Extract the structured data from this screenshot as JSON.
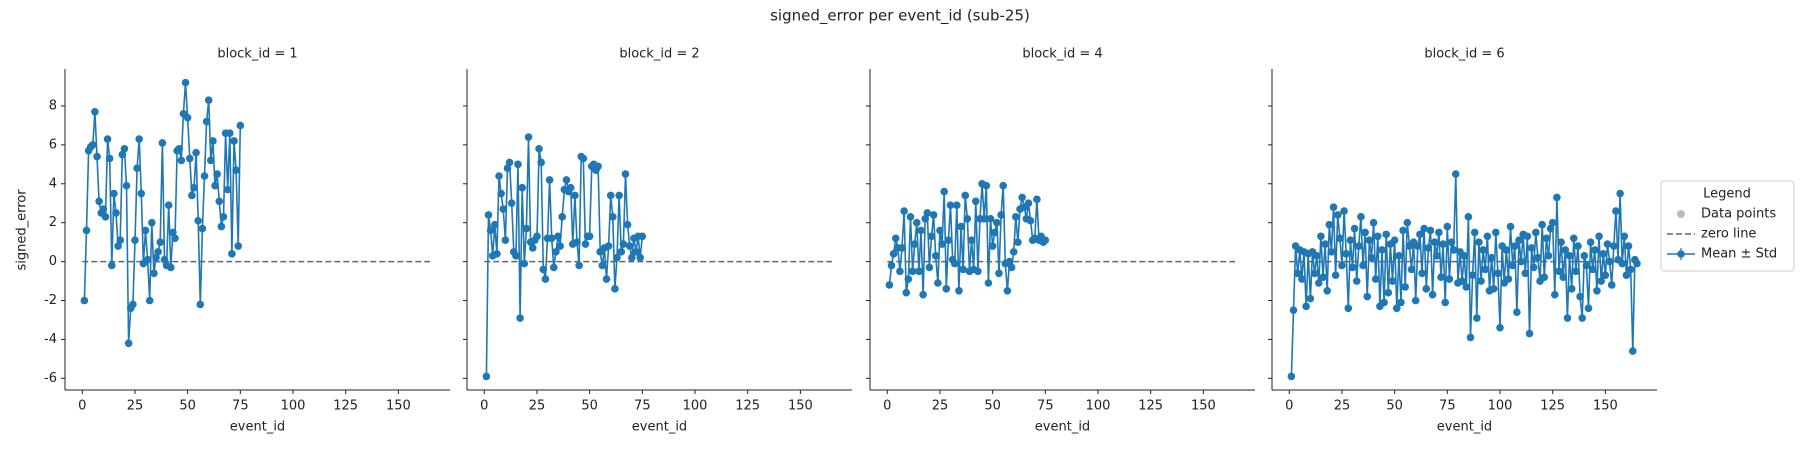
{
  "chart_data": {
    "type": "line",
    "title": "signed_error per event_id (sub-25)",
    "xlabel": "event_id",
    "ylabel": "signed_error",
    "xlim": [
      -8.2,
      174.5
    ],
    "xticks": [
      0,
      25,
      50,
      75,
      100,
      125,
      150
    ],
    "ylim": [
      -6.6,
      9.9
    ],
    "yticks": [
      -6,
      -4,
      -2,
      0,
      2,
      4,
      6,
      8
    ],
    "zero_line": 0,
    "legend": {
      "title": "Legend",
      "position": "right",
      "items": [
        {
          "name": "Data points",
          "color": "#bbbbbb"
        },
        {
          "name": "zero line",
          "color": "#666666"
        },
        {
          "name": "Mean ± Std",
          "color": "#1f77b4"
        }
      ]
    },
    "panels": [
      {
        "title": "block_id = 1",
        "x": [
          1,
          2,
          3,
          4,
          5,
          6,
          7,
          8,
          9,
          10,
          11,
          12,
          13,
          14,
          15,
          16,
          17,
          18,
          19,
          20,
          21,
          22,
          23,
          24,
          25,
          26,
          27,
          28,
          29,
          30,
          31,
          32,
          33,
          34,
          35,
          36,
          37,
          38,
          39,
          40,
          41,
          42,
          43,
          44,
          45,
          46,
          47,
          48,
          49,
          50,
          51,
          52,
          53,
          54,
          55,
          56,
          57,
          58,
          59,
          60,
          61,
          62,
          63,
          64,
          65,
          66,
          67,
          68,
          69,
          70,
          71,
          72,
          73,
          74,
          75
        ],
        "values": [
          -2.0,
          1.6,
          5.7,
          5.9,
          6.0,
          7.7,
          5.4,
          3.1,
          2.5,
          2.7,
          2.3,
          6.3,
          5.3,
          -0.2,
          3.5,
          2.5,
          0.8,
          1.1,
          5.5,
          5.8,
          3.9,
          -4.2,
          -2.4,
          -2.2,
          1.1,
          4.8,
          6.3,
          3.5,
          -0.1,
          1.6,
          0.1,
          -2.0,
          2.0,
          -0.6,
          0.2,
          0.5,
          1.0,
          6.1,
          0.1,
          -0.2,
          2.9,
          -0.3,
          1.5,
          1.2,
          5.7,
          5.8,
          5.2,
          7.6,
          9.2,
          7.4,
          5.3,
          3.4,
          3.8,
          5.6,
          2.1,
          -2.2,
          1.7,
          4.4,
          7.2,
          8.3,
          5.2,
          6.2,
          3.9,
          4.5,
          3.1,
          1.8,
          2.3,
          6.6,
          3.7,
          6.6,
          0.4,
          6.2,
          4.7,
          0.8,
          7.0
        ]
      },
      {
        "title": "block_id = 2",
        "x": [
          1,
          2,
          3,
          4,
          5,
          6,
          7,
          8,
          9,
          10,
          11,
          12,
          13,
          14,
          15,
          16,
          17,
          18,
          19,
          20,
          21,
          22,
          23,
          24,
          25,
          26,
          27,
          28,
          29,
          30,
          31,
          32,
          33,
          34,
          35,
          36,
          37,
          38,
          39,
          40,
          41,
          42,
          43,
          44,
          45,
          46,
          47,
          48,
          49,
          50,
          51,
          52,
          53,
          54,
          55,
          56,
          57,
          58,
          59,
          60,
          61,
          62,
          63,
          64,
          65,
          66,
          67,
          68,
          69,
          70,
          71,
          72,
          73,
          74,
          75
        ],
        "values": [
          -5.9,
          2.4,
          1.6,
          0.3,
          1.9,
          0.4,
          4.4,
          3.5,
          2.7,
          1.1,
          4.8,
          5.1,
          3.0,
          0.5,
          0.3,
          5.0,
          -2.9,
          3.8,
          -0.1,
          1.7,
          6.4,
          1.0,
          0.7,
          1.1,
          1.3,
          5.8,
          5.1,
          -0.4,
          -0.9,
          1.2,
          4.2,
          1.2,
          -0.3,
          0.5,
          1.3,
          0.8,
          2.3,
          3.7,
          4.2,
          3.6,
          3.8,
          0.9,
          3.4,
          1.0,
          -0.2,
          5.4,
          5.3,
          0.9,
          1.3,
          1.3,
          4.9,
          5.0,
          4.7,
          4.9,
          0.5,
          -0.2,
          0.7,
          -0.9,
          0.8,
          3.4,
          2.3,
          -1.4,
          0.2,
          3.4,
          0.5,
          0.9,
          4.5,
          1.9,
          0.8,
          0.2,
          1.2,
          0.5,
          1.3,
          0.2,
          1.3
        ]
      },
      {
        "title": "block_id = 4",
        "x": [
          1,
          2,
          3,
          4,
          5,
          6,
          7,
          8,
          9,
          10,
          11,
          12,
          13,
          14,
          15,
          16,
          17,
          18,
          19,
          20,
          21,
          22,
          23,
          24,
          25,
          26,
          27,
          28,
          29,
          30,
          31,
          32,
          33,
          34,
          35,
          36,
          37,
          38,
          39,
          40,
          41,
          42,
          43,
          44,
          45,
          46,
          47,
          48,
          49,
          50,
          51,
          52,
          53,
          54,
          55,
          56,
          57,
          58,
          59,
          60,
          61,
          62,
          63,
          64,
          65,
          66,
          67,
          68,
          69,
          70,
          71,
          72,
          73,
          74,
          75
        ],
        "values": [
          -1.2,
          -0.2,
          0.4,
          1.2,
          0.7,
          -0.5,
          0.7,
          2.6,
          -1.6,
          -0.9,
          2.3,
          -0.5,
          0.9,
          2.0,
          -0.5,
          1.6,
          -1.7,
          2.2,
          2.5,
          -0.3,
          1.3,
          2.4,
          0.3,
          -1.1,
          1.6,
          0.9,
          3.6,
          -1.4,
          1.1,
          2.9,
          0.1,
          -0.1,
          2.9,
          -1.5,
          1.8,
          -0.4,
          3.4,
          2.2,
          -0.5,
          1.1,
          -0.4,
          3.1,
          -0.5,
          2.2,
          4.0,
          2.2,
          3.9,
          -1.1,
          2.2,
          0.8,
          1.5,
          2.0,
          -0.6,
          2.4,
          3.9,
          -0.1,
          -1.5,
          0.0,
          -0.3,
          0.5,
          2.3,
          1.0,
          2.7,
          3.3,
          2.8,
          2.2,
          3.0,
          2.1,
          1.1,
          1.2,
          3.2,
          1.1,
          1.3,
          1.0,
          1.1
        ]
      },
      {
        "title": "block_id = 6",
        "x": [
          1,
          2,
          3,
          4,
          5,
          6,
          7,
          8,
          9,
          10,
          11,
          12,
          13,
          14,
          15,
          16,
          17,
          18,
          19,
          20,
          21,
          22,
          23,
          24,
          25,
          26,
          27,
          28,
          29,
          30,
          31,
          32,
          33,
          34,
          35,
          36,
          37,
          38,
          39,
          40,
          41,
          42,
          43,
          44,
          45,
          46,
          47,
          48,
          49,
          50,
          51,
          52,
          53,
          54,
          55,
          56,
          57,
          58,
          59,
          60,
          61,
          62,
          63,
          64,
          65,
          66,
          67,
          68,
          69,
          70,
          71,
          72,
          73,
          74,
          75,
          76,
          77,
          78,
          79,
          80,
          81,
          82,
          83,
          84,
          85,
          86,
          87,
          88,
          89,
          90,
          91,
          92,
          93,
          94,
          95,
          96,
          97,
          98,
          99,
          100,
          101,
          102,
          103,
          104,
          105,
          106,
          107,
          108,
          109,
          110,
          111,
          112,
          113,
          114,
          115,
          116,
          117,
          118,
          119,
          120,
          121,
          122,
          123,
          124,
          125,
          126,
          127,
          128,
          129,
          130,
          131,
          132,
          133,
          134,
          135,
          136,
          137,
          138,
          139,
          140,
          141,
          142,
          143,
          144,
          145,
          146,
          147,
          148,
          149,
          150,
          151,
          152,
          153,
          154,
          155,
          156,
          157,
          158,
          159,
          160,
          161,
          162,
          163,
          164,
          165
        ],
        "values": [
          -5.9,
          -2.5,
          0.8,
          -0.6,
          0.6,
          -0.9,
          0.5,
          -2.3,
          0.4,
          -1.9,
          0.5,
          -0.6,
          0.3,
          -1.1,
          1.3,
          -0.8,
          0.9,
          -1.5,
          1.9,
          0.5,
          2.8,
          -0.7,
          2.4,
          1.2,
          -0.2,
          2.6,
          0.4,
          -2.4,
          1.1,
          -0.3,
          1.7,
          -1.0,
          0.8,
          2.3,
          -0.2,
          1.5,
          -1.8,
          1.1,
          0.2,
          2.0,
          -0.9,
          1.3,
          -2.3,
          0.6,
          -2.1,
          1.4,
          -1.6,
          0.9,
          -1.0,
          1.1,
          -2.4,
          0.3,
          -2.1,
          1.6,
          -1.3,
          2.0,
          0.8,
          -0.4,
          1.0,
          -2.0,
          0.8,
          1.4,
          -0.6,
          1.7,
          -1.4,
          0.7,
          1.6,
          -1.7,
          1.0,
          0.3,
          1.5,
          -0.8,
          0.9,
          -2.1,
          1.8,
          -0.9,
          1.0,
          0.6,
          4.5,
          -1.1,
          0.5,
          -1.0,
          0.3,
          -1.3,
          2.3,
          -3.9,
          -0.7,
          1.5,
          -2.9,
          1.0,
          -1.0,
          0.6,
          -0.4,
          1.3,
          -1.5,
          0.2,
          -1.4,
          1.5,
          -0.6,
          -3.4,
          0.8,
          -1.1,
          0.6,
          -0.9,
          1.8,
          -0.2,
          0.8,
          -2.6,
          1.1,
          0.0,
          1.4,
          -0.6,
          1.3,
          -3.7,
          0.7,
          -0.3,
          1.5,
          0.2,
          -1.0,
          1.9,
          -0.8,
          1.2,
          0.3,
          1.7,
          2.0,
          -1.7,
          3.3,
          -0.5,
          1.0,
          -0.8,
          0.6,
          -2.9,
          0.3,
          -1.4,
          1.2,
          -0.5,
          0.8,
          -1.8,
          -2.9,
          0.3,
          -0.2,
          -2.4,
          1.0,
          -0.4,
          0.6,
          -1.5,
          1.3,
          -1.0,
          0.4,
          -0.7,
          0.9,
          0.0,
          -1.2,
          0.8,
          2.6,
          0.1,
          3.5,
          -0.1,
          1.3,
          -0.7,
          0.8,
          -0.4,
          -4.6,
          0.1,
          -0.1
        ]
      }
    ]
  }
}
